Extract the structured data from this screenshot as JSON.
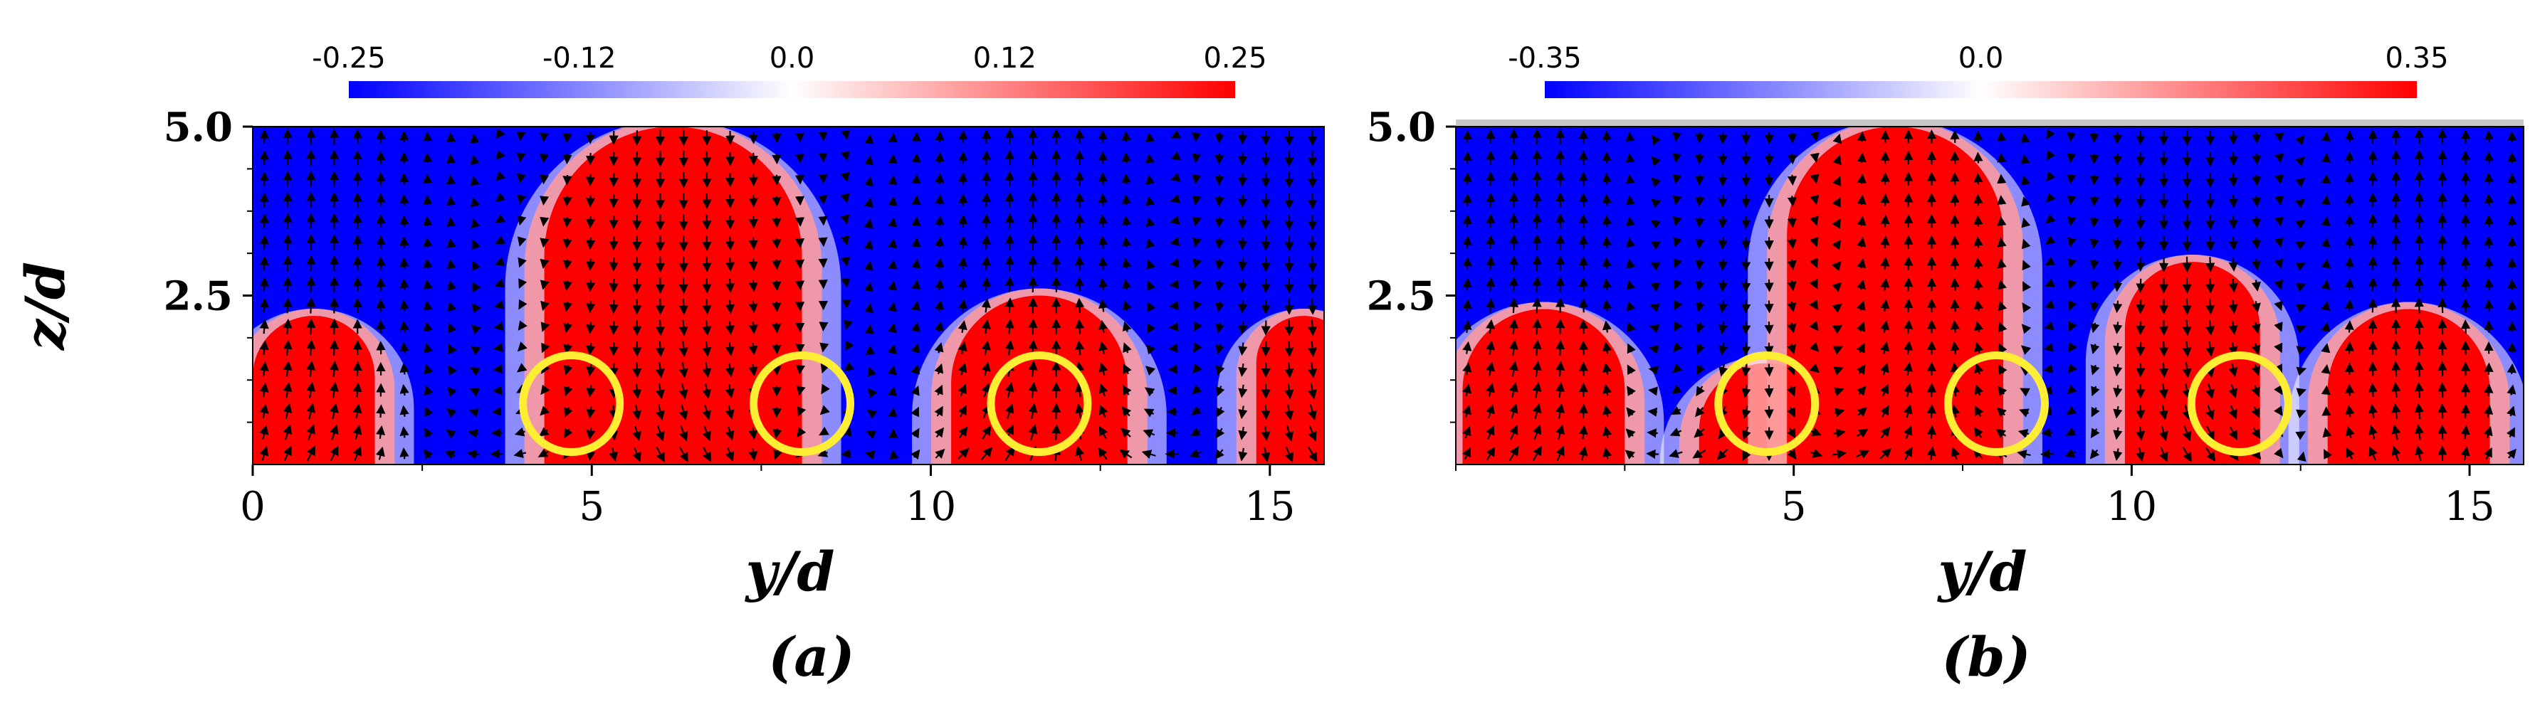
{
  "chart_data": [
    {
      "type": "heatmap",
      "panel_label": "(a)",
      "xlabel": "y/d",
      "ylabel": "z/d",
      "xlim": [
        0,
        15.8
      ],
      "ylim": [
        0,
        5.0
      ],
      "xticks": [
        "0",
        "5",
        "10",
        "15"
      ],
      "xtick_values": [
        0,
        5,
        10,
        15
      ],
      "yticks": [
        "2.5",
        "5.0"
      ],
      "ytick_values": [
        2.5,
        5.0
      ],
      "colorbar": {
        "range": [
          -0.25,
          0.25
        ],
        "ticks": [
          "-0.25",
          "-0.12",
          "0.0",
          "0.12",
          "0.25"
        ],
        "tick_values": [
          -0.25,
          -0.12,
          0.0,
          0.12,
          0.25
        ],
        "colors": [
          "#0000ff",
          "#ffffff",
          "#ff0000"
        ]
      },
      "regions": [
        {
          "sign": "positive",
          "y_center": 0.9,
          "half_width": 0.9,
          "z_top": 2.2
        },
        {
          "sign": "positive",
          "y_center": 6.2,
          "half_width": 1.9,
          "z_top": 5.0
        },
        {
          "sign": "positive",
          "y_center": 11.6,
          "half_width": 1.3,
          "z_top": 2.5
        },
        {
          "sign": "positive",
          "y_center": 15.5,
          "half_width": 0.7,
          "z_top": 2.2
        }
      ],
      "markers": [
        {
          "shape": "circle",
          "y": 4.7,
          "z": 0.9,
          "color": "#ffee33"
        },
        {
          "shape": "circle",
          "y": 8.1,
          "z": 0.9,
          "color": "#ffee33"
        },
        {
          "shape": "circle",
          "y": 11.6,
          "z": 0.9,
          "color": "#ffee33"
        }
      ],
      "vectors": "in-plane velocity arrows"
    },
    {
      "type": "heatmap",
      "panel_label": "(b)",
      "xlabel": "y/d",
      "ylabel": "",
      "xlim": [
        0,
        15.8
      ],
      "ylim": [
        0,
        5.0
      ],
      "xticks": [
        "5",
        "10",
        "15"
      ],
      "xtick_values": [
        5,
        10,
        15
      ],
      "yticks": [
        "2.5",
        "5.0"
      ],
      "ytick_values": [
        2.5,
        5.0
      ],
      "colorbar": {
        "range": [
          -0.35,
          0.35
        ],
        "ticks": [
          "-0.35",
          "0.0",
          "0.35"
        ],
        "tick_values": [
          -0.35,
          0.0,
          0.35
        ],
        "colors": [
          "#0000ff",
          "#ffffff",
          "#ff0000"
        ]
      },
      "regions": [
        {
          "sign": "positive",
          "y_center": 1.3,
          "half_width": 1.2,
          "z_top": 2.3
        },
        {
          "sign": "positive",
          "y_center": 4.6,
          "half_width": 1.0,
          "z_top": 1.5
        },
        {
          "sign": "positive",
          "y_center": 6.5,
          "half_width": 1.6,
          "z_top": 5.0
        },
        {
          "sign": "positive",
          "y_center": 10.9,
          "half_width": 1.0,
          "z_top": 3.0
        },
        {
          "sign": "positive",
          "y_center": 14.1,
          "half_width": 1.2,
          "z_top": 2.3
        }
      ],
      "markers": [
        {
          "shape": "circle",
          "y": 4.6,
          "z": 0.9,
          "color": "#ffee33"
        },
        {
          "shape": "circle",
          "y": 8.0,
          "z": 0.9,
          "color": "#ffee33"
        },
        {
          "shape": "circle",
          "y": 11.6,
          "z": 0.9,
          "color": "#ffee33"
        }
      ],
      "vectors": "in-plane velocity arrows"
    }
  ]
}
